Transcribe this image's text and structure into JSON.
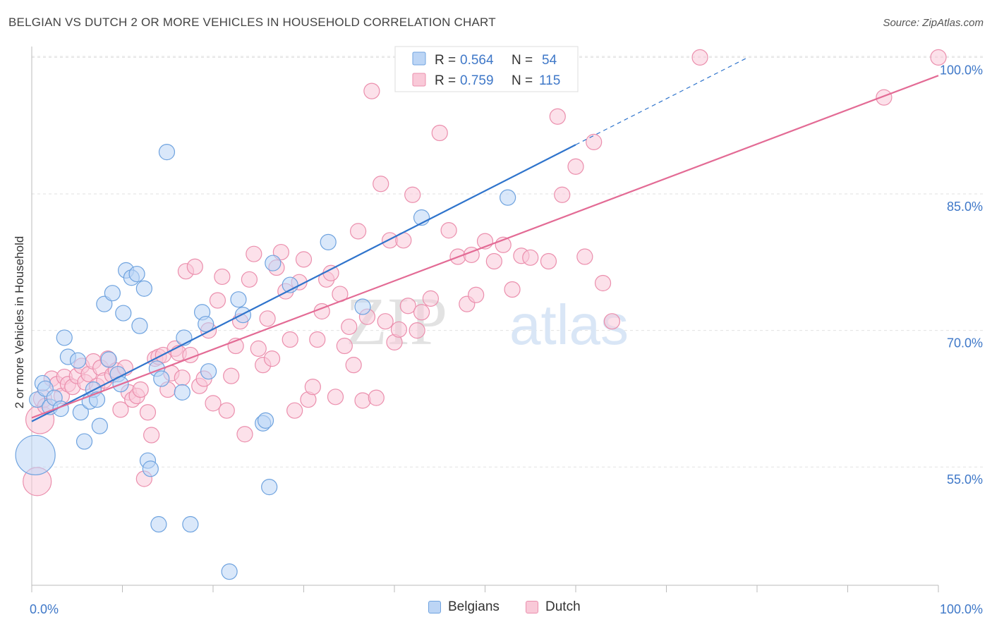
{
  "title": "BELGIAN VS DUTCH 2 OR MORE VEHICLES IN HOUSEHOLD CORRELATION CHART",
  "source": "Source: ZipAtlas.com",
  "watermark": {
    "zip": "ZIP",
    "atlas": "atlas"
  },
  "colors": {
    "blue": "#6fa3df",
    "blue_fill": "#bcd5f5",
    "blue_line": "#2f74cc",
    "pink": "#eb8fad",
    "pink_fill": "#f9c9d8",
    "pink_line": "#e36b95",
    "tick_label": "#3f78c8",
    "grid": "#e2e2e2"
  },
  "legend_top": {
    "rows": [
      {
        "r_label": "R =",
        "r_value": "0.564",
        "n_label": "N =",
        "n_value": "54"
      },
      {
        "r_label": "R =",
        "r_value": "0.759",
        "n_label": "N =",
        "n_value": "115"
      }
    ]
  },
  "legend_bottom": {
    "belgians": "Belgians",
    "dutch": "Dutch"
  },
  "chart_data": {
    "type": "scatter",
    "ylabel": "2 or more Vehicles in Household",
    "xlim": [
      0,
      100
    ],
    "ylim": [
      42,
      101.5
    ],
    "x_tick_labels": [
      "0.0%",
      "100.0%"
    ],
    "y_ticks": [
      55,
      70,
      85,
      100
    ],
    "y_tick_labels": [
      "55.0%",
      "70.0%",
      "85.0%",
      "100.0%"
    ],
    "grid": true,
    "series": [
      {
        "name": "Belgians",
        "color": "blue",
        "trend": {
          "x0": 0.0,
          "y0": 60.0,
          "x1": 60.0,
          "y1": 90.4,
          "dash_x1": 79.0,
          "dash_y1": 100.0
        },
        "points": [
          [
            0.4,
            56.3,
            28
          ],
          [
            0.6,
            62.4,
            11
          ],
          [
            1.2,
            64.2,
            11
          ],
          [
            1.5,
            63.6,
            11
          ],
          [
            2.0,
            61.6,
            11
          ],
          [
            2.5,
            62.6,
            11
          ],
          [
            3.2,
            61.4,
            11
          ],
          [
            3.6,
            69.2,
            11
          ],
          [
            4.0,
            67.1,
            11
          ],
          [
            5.1,
            66.7,
            11
          ],
          [
            5.4,
            61.0,
            11
          ],
          [
            5.8,
            57.8,
            11
          ],
          [
            6.4,
            62.2,
            11
          ],
          [
            6.8,
            63.5,
            11
          ],
          [
            7.2,
            62.4,
            11
          ],
          [
            7.5,
            59.5,
            11
          ],
          [
            8.0,
            72.9,
            11
          ],
          [
            8.5,
            66.8,
            11
          ],
          [
            8.9,
            74.1,
            11
          ],
          [
            9.5,
            65.2,
            11
          ],
          [
            9.8,
            64.1,
            11
          ],
          [
            10.1,
            71.9,
            11
          ],
          [
            10.4,
            76.6,
            11
          ],
          [
            11.0,
            75.8,
            11
          ],
          [
            11.6,
            76.2,
            11
          ],
          [
            11.9,
            70.5,
            11
          ],
          [
            12.4,
            74.6,
            11
          ],
          [
            12.8,
            55.7,
            11
          ],
          [
            13.1,
            54.8,
            11
          ],
          [
            13.8,
            65.8,
            11
          ],
          [
            14.0,
            48.7,
            11
          ],
          [
            14.3,
            64.7,
            11
          ],
          [
            14.9,
            89.6,
            11
          ],
          [
            16.6,
            63.2,
            11
          ],
          [
            16.8,
            69.2,
            11
          ],
          [
            17.5,
            48.7,
            11
          ],
          [
            18.8,
            72.0,
            11
          ],
          [
            19.2,
            70.7,
            11
          ],
          [
            19.5,
            65.5,
            11
          ],
          [
            21.8,
            43.5,
            11
          ],
          [
            22.8,
            73.4,
            11
          ],
          [
            23.3,
            71.7,
            11
          ],
          [
            25.5,
            59.8,
            11
          ],
          [
            25.8,
            60.1,
            11
          ],
          [
            26.2,
            52.8,
            11
          ],
          [
            26.6,
            77.4,
            11
          ],
          [
            28.5,
            75.0,
            11
          ],
          [
            32.7,
            79.7,
            11
          ],
          [
            36.5,
            72.6,
            11
          ],
          [
            43.0,
            82.4,
            11
          ],
          [
            43.5,
            100.0,
            11
          ],
          [
            50.0,
            100.0,
            11
          ],
          [
            52.0,
            100.0,
            11
          ],
          [
            52.5,
            84.6,
            11
          ]
        ]
      },
      {
        "name": "Dutch",
        "color": "pink",
        "trend": {
          "x0": 0.0,
          "y0": 60.4,
          "x1": 100.0,
          "y1": 98.0
        },
        "points": [
          [
            0.6,
            53.4,
            20
          ],
          [
            0.9,
            60.2,
            20
          ],
          [
            1.2,
            62.5,
            13
          ],
          [
            1.5,
            61.7,
            11
          ],
          [
            2.2,
            64.7,
            11
          ],
          [
            2.8,
            64.1,
            11
          ],
          [
            3.3,
            62.8,
            11
          ],
          [
            3.6,
            64.9,
            11
          ],
          [
            4.0,
            64.1,
            11
          ],
          [
            4.5,
            63.8,
            11
          ],
          [
            5.0,
            65.0,
            11
          ],
          [
            5.5,
            66.1,
            11
          ],
          [
            5.9,
            64.3,
            11
          ],
          [
            6.3,
            65.2,
            11
          ],
          [
            6.8,
            66.6,
            11
          ],
          [
            7.2,
            63.9,
            11
          ],
          [
            7.6,
            65.9,
            11
          ],
          [
            8.0,
            64.5,
            11
          ],
          [
            8.4,
            66.9,
            11
          ],
          [
            8.9,
            65.1,
            11
          ],
          [
            9.3,
            65.6,
            11
          ],
          [
            9.8,
            61.3,
            11
          ],
          [
            10.3,
            65.9,
            11
          ],
          [
            10.7,
            63.2,
            11
          ],
          [
            11.1,
            62.4,
            11
          ],
          [
            11.6,
            62.8,
            11
          ],
          [
            12.0,
            63.5,
            11
          ],
          [
            12.4,
            53.7,
            11
          ],
          [
            12.8,
            61.0,
            11
          ],
          [
            13.2,
            58.5,
            11
          ],
          [
            13.6,
            66.9,
            11
          ],
          [
            14.0,
            67.1,
            11
          ],
          [
            14.5,
            67.3,
            11
          ],
          [
            15.0,
            63.5,
            11
          ],
          [
            15.4,
            65.3,
            11
          ],
          [
            15.8,
            68.0,
            11
          ],
          [
            16.2,
            67.5,
            11
          ],
          [
            16.6,
            64.8,
            11
          ],
          [
            17.0,
            76.5,
            11
          ],
          [
            17.5,
            67.3,
            11
          ],
          [
            18.0,
            77.0,
            11
          ],
          [
            18.5,
            63.9,
            11
          ],
          [
            19.0,
            64.7,
            11
          ],
          [
            19.5,
            70.0,
            11
          ],
          [
            20.0,
            62.0,
            11
          ],
          [
            20.5,
            73.3,
            11
          ],
          [
            21.0,
            75.9,
            11
          ],
          [
            21.5,
            61.2,
            11
          ],
          [
            22.0,
            65.0,
            11
          ],
          [
            22.5,
            68.3,
            11
          ],
          [
            23.0,
            71.0,
            11
          ],
          [
            23.5,
            58.6,
            11
          ],
          [
            24.0,
            75.6,
            11
          ],
          [
            24.5,
            78.4,
            11
          ],
          [
            25.0,
            68.0,
            11
          ],
          [
            25.5,
            66.2,
            11
          ],
          [
            26.0,
            71.3,
            11
          ],
          [
            26.5,
            66.9,
            11
          ],
          [
            27.0,
            76.9,
            11
          ],
          [
            27.5,
            78.6,
            11
          ],
          [
            28.0,
            74.3,
            11
          ],
          [
            28.5,
            69.0,
            11
          ],
          [
            29.0,
            61.2,
            11
          ],
          [
            29.5,
            75.3,
            11
          ],
          [
            30.0,
            77.8,
            11
          ],
          [
            30.5,
            62.4,
            11
          ],
          [
            31.0,
            63.8,
            11
          ],
          [
            31.5,
            69.0,
            11
          ],
          [
            32.0,
            72.1,
            11
          ],
          [
            32.5,
            75.6,
            11
          ],
          [
            33.0,
            76.3,
            11
          ],
          [
            33.5,
            62.7,
            11
          ],
          [
            34.0,
            74.0,
            11
          ],
          [
            34.5,
            68.3,
            11
          ],
          [
            35.0,
            70.4,
            11
          ],
          [
            35.5,
            66.2,
            11
          ],
          [
            36.0,
            80.9,
            11
          ],
          [
            36.5,
            62.3,
            11
          ],
          [
            37.0,
            71.5,
            11
          ],
          [
            37.5,
            96.3,
            11
          ],
          [
            38.0,
            62.6,
            11
          ],
          [
            38.5,
            86.1,
            11
          ],
          [
            39.0,
            71.0,
            11
          ],
          [
            39.5,
            79.9,
            11
          ],
          [
            40.0,
            68.7,
            11
          ],
          [
            40.5,
            70.1,
            11
          ],
          [
            41.0,
            79.9,
            11
          ],
          [
            41.5,
            72.7,
            11
          ],
          [
            42.0,
            84.9,
            11
          ],
          [
            42.5,
            70.0,
            11
          ],
          [
            43.0,
            72.0,
            11
          ],
          [
            44.0,
            73.5,
            11
          ],
          [
            45.0,
            91.7,
            11
          ],
          [
            46.0,
            81.0,
            11
          ],
          [
            47.0,
            78.1,
            11
          ],
          [
            48.0,
            72.9,
            11
          ],
          [
            49.0,
            73.9,
            11
          ],
          [
            50.0,
            79.8,
            11
          ],
          [
            51.0,
            77.6,
            11
          ],
          [
            52.0,
            79.4,
            11
          ],
          [
            53.0,
            74.5,
            11
          ],
          [
            54.0,
            78.2,
            11
          ],
          [
            55.0,
            78.0,
            11
          ],
          [
            57.0,
            77.6,
            11
          ],
          [
            58.0,
            93.5,
            11
          ],
          [
            60.0,
            88.0,
            11
          ],
          [
            62.0,
            90.7,
            11
          ],
          [
            63.0,
            75.2,
            11
          ],
          [
            64.0,
            71.0,
            11
          ],
          [
            73.7,
            100.0,
            11
          ],
          [
            94.0,
            95.6,
            11
          ],
          [
            100.0,
            100.0,
            11
          ],
          [
            58.5,
            84.9,
            11
          ],
          [
            61.0,
            78.1,
            11
          ],
          [
            48.5,
            78.3,
            11
          ]
        ]
      }
    ]
  }
}
